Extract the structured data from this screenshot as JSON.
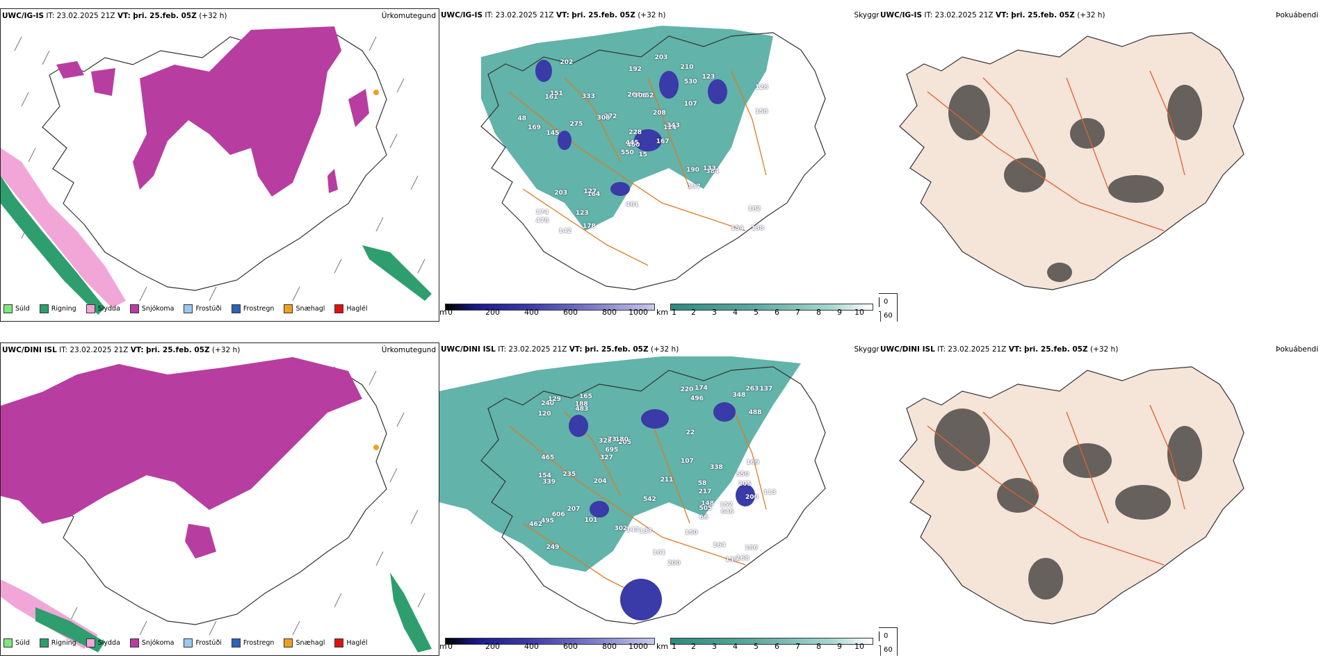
{
  "panels": [
    {
      "id": "r1c1",
      "model": "UWC/IG-IS",
      "it": "IT: 23.02.2025 21Z",
      "vt_label": "VT:",
      "vt": "þri. 25.feb. 05Z",
      "lead": "(+32 h)",
      "title": "Úrkomutegund"
    },
    {
      "id": "r1c2",
      "model": "UWC/IG-IS",
      "it": "IT: 23.02.2025 21Z",
      "vt_label": "VT:",
      "vt": "þri. 25.feb. 05Z",
      "lead": "(+32 h)",
      "title": "Skyggni"
    },
    {
      "id": "r1c3",
      "model": "UWC/IG-IS",
      "it": "IT: 23.02.2025 21Z",
      "vt_label": "VT:",
      "vt": "þri. 25.feb. 05Z",
      "lead": "(+32 h)",
      "title": "Þokuábendi"
    },
    {
      "id": "r2c1",
      "model": "UWC/DINI ISL",
      "it": "IT: 23.02.2025 21Z",
      "vt_label": "VT:",
      "vt": "þri. 25.feb. 05Z",
      "lead": "(+32 h)",
      "title": "Úrkomutegund"
    },
    {
      "id": "r2c2",
      "model": "UWC/DINI ISL",
      "it": "IT: 23.02.2025 21Z",
      "vt_label": "VT:",
      "vt": "þri. 25.feb. 05Z",
      "lead": "(+32 h)",
      "title": "Skyggni"
    },
    {
      "id": "r2c3",
      "model": "UWC/DINI ISL",
      "it": "IT: 23.02.2025 21Z",
      "vt_label": "VT:",
      "vt": "þri. 25.feb. 05Z",
      "lead": "(+32 h)",
      "title": "Þokuábendi"
    }
  ],
  "precip_legend": [
    {
      "label": "Súld",
      "color": "#7fe57f"
    },
    {
      "label": "Rigning",
      "color": "#2e9e6e"
    },
    {
      "label": "Slydda",
      "color": "#f2a6d8"
    },
    {
      "label": "Snjókoma",
      "color": "#b83da0"
    },
    {
      "label": "Frostúði",
      "color": "#9cc8f0"
    },
    {
      "label": "Frostregn",
      "color": "#2a64b8"
    },
    {
      "label": "Snæhagl",
      "color": "#f0a020"
    },
    {
      "label": "Haglél",
      "color": "#e01010"
    }
  ],
  "colorbar_m": {
    "unit": "m",
    "ticks": [
      "0",
      "200",
      "400",
      "600",
      "800",
      "1000"
    ]
  },
  "colorbar_km": {
    "unit": "km",
    "ticks": [
      "1",
      "2",
      "3",
      "4",
      "5",
      "6",
      "7",
      "8",
      "9",
      "10"
    ]
  },
  "fog_legend": {
    "ticks": [
      "0",
      "60"
    ]
  },
  "visibility_labels_top": [
    "15",
    "161",
    "460",
    "174",
    "124",
    "164",
    "210",
    "652",
    "530",
    "167",
    "202",
    "138",
    "145",
    "128",
    "550",
    "107",
    "142",
    "264",
    "208",
    "203",
    "272",
    "478",
    "123",
    "306",
    "343",
    "384",
    "151",
    "192",
    "169",
    "190",
    "158",
    "445",
    "461",
    "228",
    "333",
    "123",
    "127",
    "154",
    "182",
    "133",
    "203",
    "308",
    "275",
    "137",
    "178",
    "48"
  ],
  "visibility_labels_bottom": [
    "217",
    "205",
    "249",
    "165",
    "205",
    "164",
    "495",
    "496",
    "328",
    "200",
    "120",
    "154",
    "240",
    "186",
    "302",
    "169",
    "542",
    "211",
    "180",
    "207",
    "137",
    "348",
    "327",
    "200",
    "220",
    "188",
    "148",
    "339",
    "483",
    "338",
    "161",
    "150",
    "695",
    "204",
    "550",
    "646",
    "505",
    "235",
    "137",
    "606",
    "488",
    "174",
    "168",
    "143",
    "152",
    "101",
    "462",
    "129",
    "107",
    "465",
    "113",
    "73",
    "263",
    "58",
    "66",
    "139",
    "22"
  ],
  "colors": {
    "snow": "#b83da0",
    "rain": "#2e9e6e",
    "sleet": "#f2a6d8",
    "vis_teal": "#2e9a8c",
    "vis_blue": "#3a3aa8",
    "roads": "#e07a20",
    "fog_land": "#f5e4d8",
    "fog_dark": "#2a2a2a"
  }
}
